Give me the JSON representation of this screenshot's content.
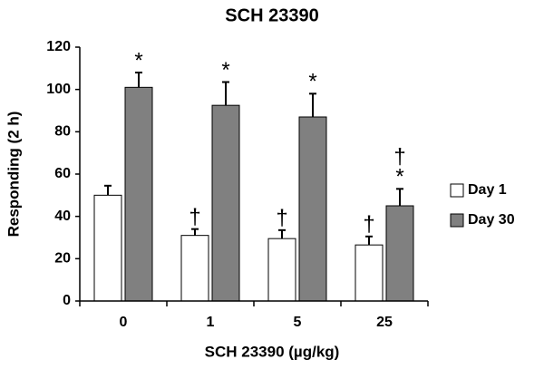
{
  "chart_data": {
    "type": "bar",
    "title": "SCH 23390",
    "x_label": "SCH 23390 (µg/kg)",
    "y_label": "Responding (2 h)",
    "categories": [
      "0",
      "1",
      "5",
      "25"
    ],
    "series": [
      {
        "name": "Day 1",
        "color": "#ffffff",
        "values": [
          50,
          31,
          29.5,
          26.5
        ],
        "errors": [
          4.5,
          3,
          4,
          4
        ],
        "markers": [
          [],
          [
            "†"
          ],
          [
            "†"
          ],
          [
            "†"
          ]
        ]
      },
      {
        "name": "Day 30",
        "color": "#808080",
        "values": [
          101,
          92.5,
          87,
          45
        ],
        "errors": [
          7,
          11,
          11,
          8
        ],
        "markers": [
          [
            "*"
          ],
          [
            "*"
          ],
          [
            "*"
          ],
          [
            "†",
            "*"
          ]
        ]
      }
    ],
    "ylim": [
      0,
      120
    ],
    "yticks": [
      0,
      20,
      40,
      60,
      80,
      100,
      120
    ],
    "grid": false,
    "legend": "right"
  }
}
